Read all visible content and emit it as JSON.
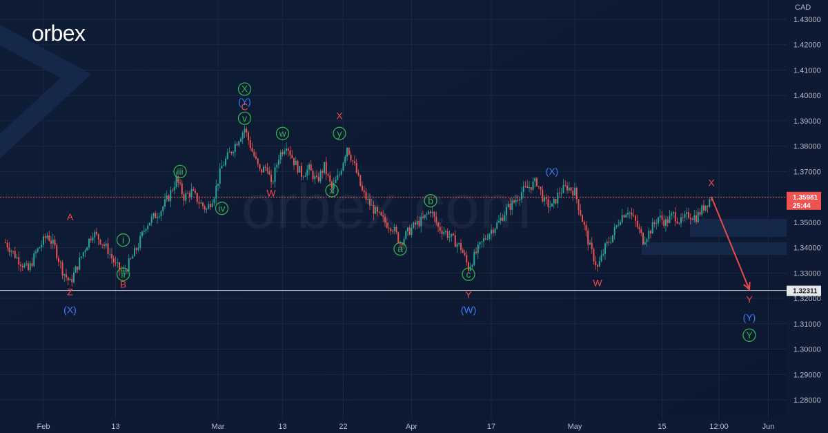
{
  "brand": {
    "logo_text": "orbex",
    "watermark": "orbex.com"
  },
  "colors": {
    "background": "#0e1a33",
    "up_candle": "#26a69a",
    "down_candle": "#ef5350",
    "red_label": "#ef4a4a",
    "blue_label": "#3d7bff",
    "green_label": "#2fb54a",
    "projection_arrow": "#ef4a4a",
    "grid": "#1a2745"
  },
  "chart_data": {
    "type": "candlestick",
    "instrument_currency": "CAD",
    "ylim": [
      1.275,
      1.435
    ],
    "y_ticks": [
      "1.28000",
      "1.29000",
      "1.30000",
      "1.31000",
      "1.32000",
      "1.33000",
      "1.34000",
      "1.35000",
      "1.36000",
      "1.37000",
      "1.38000",
      "1.39000",
      "1.40000",
      "1.41000",
      "1.42000",
      "1.43000"
    ],
    "x_ticks": [
      "Feb",
      "13",
      "Mar",
      "13",
      "22",
      "Apr",
      "17",
      "May",
      "15",
      "12:00",
      "Jun"
    ],
    "current_price": {
      "label": "1.35981",
      "countdown": "25:44",
      "value": 1.35981
    },
    "support_line": {
      "label": "1.32311",
      "value": 1.32311
    },
    "price_path": [
      [
        0,
        1.342
      ],
      [
        3,
        1.336
      ],
      [
        6,
        1.331
      ],
      [
        8,
        1.338
      ],
      [
        11,
        1.345
      ],
      [
        13,
        1.34
      ],
      [
        15,
        1.331
      ],
      [
        17,
        1.326
      ],
      [
        19,
        1.333
      ],
      [
        21,
        1.34
      ],
      [
        23,
        1.346
      ],
      [
        25,
        1.343
      ],
      [
        27,
        1.339
      ],
      [
        29,
        1.333
      ],
      [
        31,
        1.33
      ],
      [
        33,
        1.335
      ],
      [
        35,
        1.341
      ],
      [
        37,
        1.349
      ],
      [
        39,
        1.352
      ],
      [
        41,
        1.355
      ],
      [
        43,
        1.36
      ],
      [
        45,
        1.367
      ],
      [
        47,
        1.36
      ],
      [
        49,
        1.362
      ],
      [
        51,
        1.358
      ],
      [
        53,
        1.355
      ],
      [
        55,
        1.361
      ],
      [
        57,
        1.372
      ],
      [
        59,
        1.377
      ],
      [
        61,
        1.382
      ],
      [
        63,
        1.387
      ],
      [
        65,
        1.378
      ],
      [
        67,
        1.37
      ],
      [
        69,
        1.372
      ],
      [
        70,
        1.364
      ],
      [
        72,
        1.376
      ],
      [
        74,
        1.381
      ],
      [
        76,
        1.374
      ],
      [
        78,
        1.369
      ],
      [
        80,
        1.371
      ],
      [
        82,
        1.366
      ],
      [
        84,
        1.372
      ],
      [
        86,
        1.363
      ],
      [
        88,
        1.369
      ],
      [
        90,
        1.38
      ],
      [
        92,
        1.372
      ],
      [
        94,
        1.362
      ],
      [
        96,
        1.357
      ],
      [
        98,
        1.353
      ],
      [
        100,
        1.35
      ],
      [
        102,
        1.348
      ],
      [
        104,
        1.342
      ],
      [
        106,
        1.346
      ],
      [
        108,
        1.349
      ],
      [
        110,
        1.351
      ],
      [
        112,
        1.355
      ],
      [
        114,
        1.348
      ],
      [
        116,
        1.346
      ],
      [
        118,
        1.343
      ],
      [
        120,
        1.34
      ],
      [
        122,
        1.332
      ],
      [
        124,
        1.338
      ],
      [
        126,
        1.343
      ],
      [
        128,
        1.347
      ],
      [
        130,
        1.35
      ],
      [
        132,
        1.355
      ],
      [
        134,
        1.358
      ],
      [
        136,
        1.362
      ],
      [
        138,
        1.364
      ],
      [
        140,
        1.366
      ],
      [
        142,
        1.358
      ],
      [
        144,
        1.356
      ],
      [
        146,
        1.362
      ],
      [
        148,
        1.364
      ],
      [
        150,
        1.362
      ],
      [
        152,
        1.351
      ],
      [
        154,
        1.34
      ],
      [
        156,
        1.332
      ],
      [
        158,
        1.34
      ],
      [
        160,
        1.345
      ],
      [
        162,
        1.352
      ],
      [
        164,
        1.355
      ],
      [
        166,
        1.35
      ],
      [
        168,
        1.343
      ],
      [
        170,
        1.347
      ],
      [
        172,
        1.352
      ],
      [
        174,
        1.35
      ],
      [
        176,
        1.353
      ],
      [
        178,
        1.35
      ],
      [
        180,
        1.353
      ],
      [
        182,
        1.352
      ],
      [
        184,
        1.356
      ],
      [
        186,
        1.36
      ]
    ],
    "wave_labels": [
      {
        "text": "A",
        "color": "red",
        "x": 17,
        "y": 1.352,
        "circled": false
      },
      {
        "text": "Z",
        "color": "red",
        "x": 17,
        "y": 1.3225,
        "circled": false
      },
      {
        "text": "(X)",
        "color": "blue",
        "x": 17,
        "y": 1.3155,
        "circled": false
      },
      {
        "text": "i",
        "color": "green",
        "x": 31,
        "y": 1.343,
        "circled": true
      },
      {
        "text": "ii",
        "color": "green",
        "x": 31,
        "y": 1.3295,
        "circled": true
      },
      {
        "text": "B",
        "color": "red",
        "x": 31,
        "y": 1.3255,
        "circled": false
      },
      {
        "text": "iii",
        "color": "green",
        "x": 46,
        "y": 1.37,
        "circled": true
      },
      {
        "text": "iv",
        "color": "green",
        "x": 57,
        "y": 1.3555,
        "circled": true
      },
      {
        "text": "X",
        "color": "green",
        "x": 63,
        "y": 1.4025,
        "circled": true
      },
      {
        "text": "(Y)",
        "color": "blue",
        "x": 63,
        "y": 1.3975,
        "circled": false
      },
      {
        "text": "C",
        "color": "red",
        "x": 63,
        "y": 1.3955,
        "circled": false
      },
      {
        "text": "v",
        "color": "green",
        "x": 63,
        "y": 1.391,
        "circled": true
      },
      {
        "text": "w",
        "color": "green",
        "x": 73,
        "y": 1.385,
        "circled": true
      },
      {
        "text": "W",
        "color": "red",
        "x": 70,
        "y": 1.3615,
        "circled": false
      },
      {
        "text": "X",
        "color": "red",
        "x": 88,
        "y": 1.392,
        "circled": false
      },
      {
        "text": "y",
        "color": "green",
        "x": 88,
        "y": 1.385,
        "circled": true
      },
      {
        "text": "x",
        "color": "green",
        "x": 86,
        "y": 1.3625,
        "circled": true
      },
      {
        "text": "b",
        "color": "green",
        "x": 112,
        "y": 1.3585,
        "circled": true
      },
      {
        "text": "a",
        "color": "green",
        "x": 104,
        "y": 1.3395,
        "circled": true
      },
      {
        "text": "c",
        "color": "green",
        "x": 122,
        "y": 1.3295,
        "circled": true
      },
      {
        "text": "Y",
        "color": "red",
        "x": 122,
        "y": 1.3215,
        "circled": false
      },
      {
        "text": "(W)",
        "color": "blue",
        "x": 122,
        "y": 1.3155,
        "circled": false
      },
      {
        "text": "(X)",
        "color": "blue",
        "x": 144,
        "y": 1.37,
        "circled": false
      },
      {
        "text": "W",
        "color": "red",
        "x": 156,
        "y": 1.326,
        "circled": false
      },
      {
        "text": "X",
        "color": "red",
        "x": 186,
        "y": 1.3655,
        "circled": false
      },
      {
        "text": "Y",
        "color": "red",
        "x": 196,
        "y": 1.3195,
        "circled": false
      },
      {
        "text": "(Y)",
        "color": "blue",
        "x": 196,
        "y": 1.3125,
        "circled": false
      },
      {
        "text": "Y",
        "color": "green",
        "x": 196,
        "y": 1.3055,
        "circled": true
      }
    ],
    "projection": {
      "from": [
        186,
        1.36
      ],
      "to": [
        196,
        1.3235
      ]
    }
  }
}
